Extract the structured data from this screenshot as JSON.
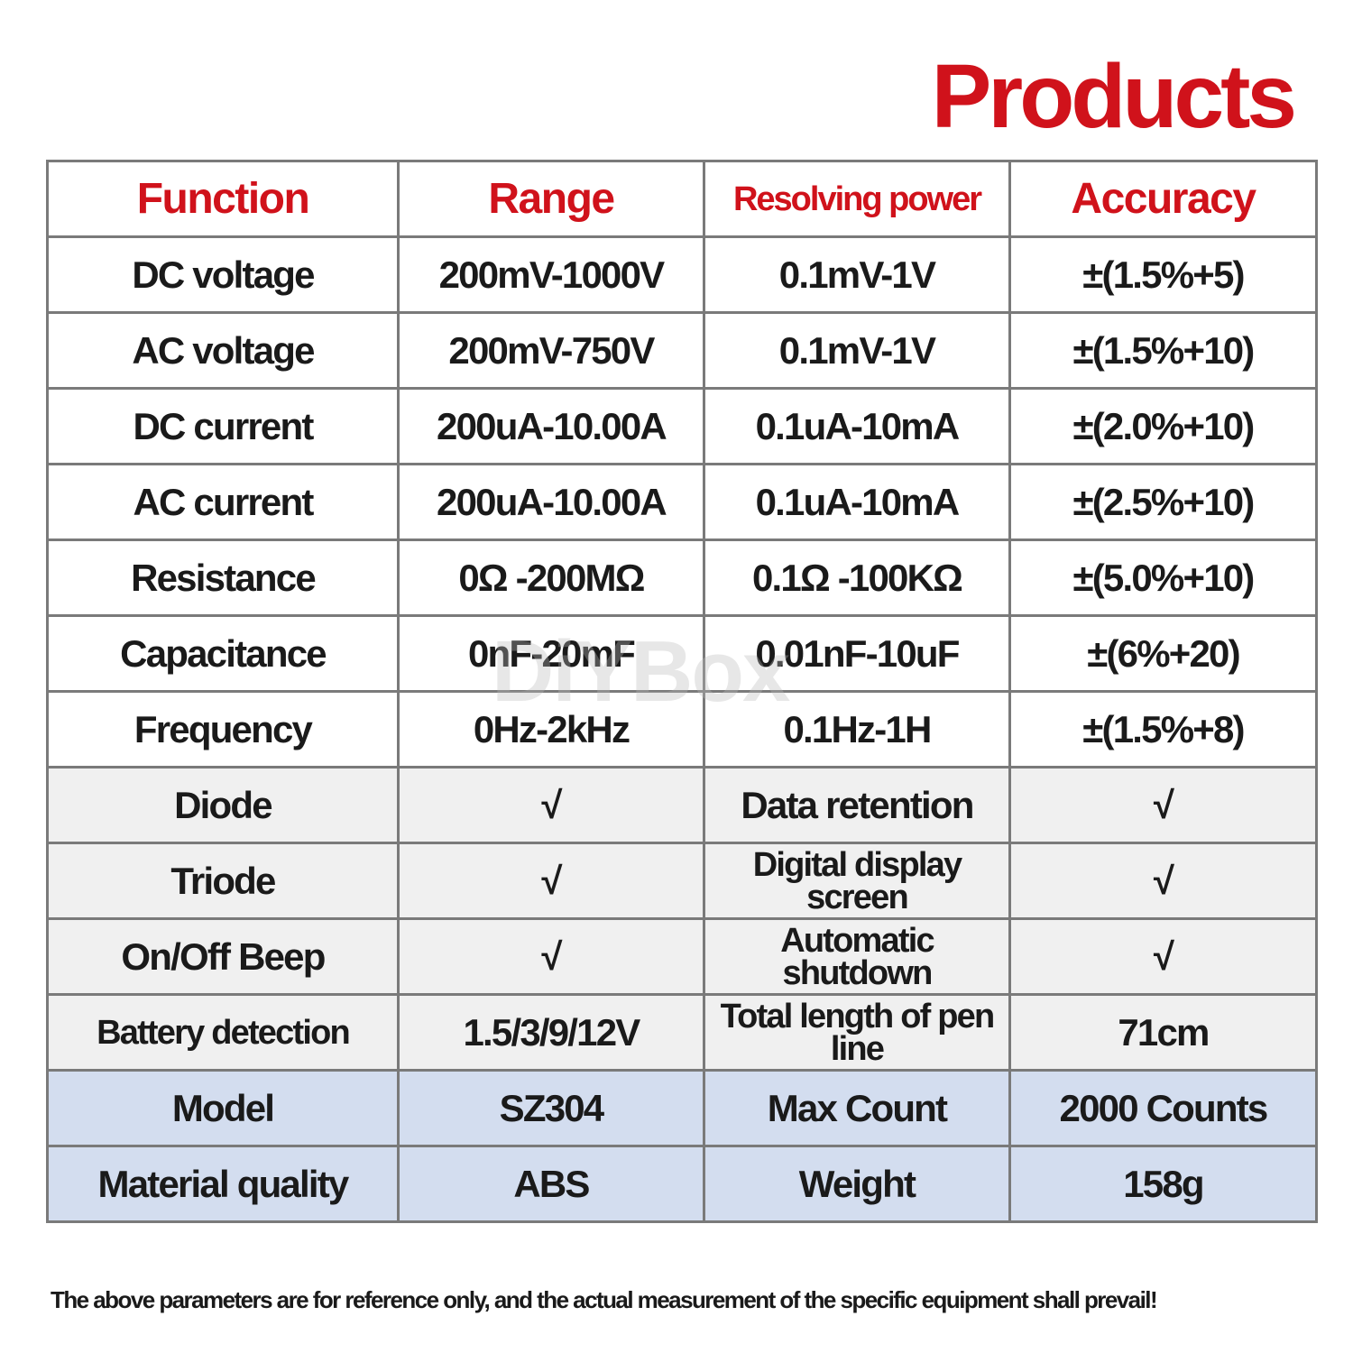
{
  "title": "Products",
  "table": {
    "header": [
      "Function",
      "Range",
      "Resolving power",
      "Accuracy"
    ],
    "rows": [
      [
        "DC voltage",
        "200mV-1000V",
        "0.1mV-1V",
        "±(1.5%+5)"
      ],
      [
        "AC voltage",
        "200mV-750V",
        "0.1mV-1V",
        "±(1.5%+10)"
      ],
      [
        "DC current",
        "200uA-10.00A",
        "0.1uA-10mA",
        "±(2.0%+10)"
      ],
      [
        "AC current",
        "200uA-10.00A",
        "0.1uA-10mA",
        "±(2.5%+10)"
      ],
      [
        "Resistance",
        "0Ω -200MΩ",
        "0.1Ω -100KΩ",
        "±(5.0%+10)"
      ],
      [
        "Capacitance",
        "0nF-20mF",
        "0.01nF-10uF",
        "±(6%+20)"
      ],
      [
        "Frequency",
        "0Hz-2kHz",
        "0.1Hz-1H",
        "±(1.5%+8)"
      ],
      [
        "Diode",
        "√",
        "Data retention",
        "√"
      ],
      [
        "Triode",
        "√",
        "Digital display screen",
        "√"
      ],
      [
        "On/Off Beep",
        "√",
        "Automatic shutdown",
        "√"
      ],
      [
        "Battery detection",
        "1.5/3/9/12V",
        "Total length of pen line",
        "71cm"
      ],
      [
        "Model",
        "SZ304",
        "Max Count",
        "2000 Counts"
      ],
      [
        "Material quality",
        "ABS",
        "Weight",
        "158g"
      ]
    ]
  },
  "watermark": "DiYBox",
  "footnote": "The above parameters are for reference only, and the actual measurement of the specific equipment shall prevail!"
}
